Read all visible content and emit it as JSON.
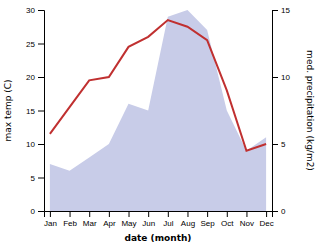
{
  "chart_data": {
    "type": "line",
    "xlabel": "date (month)",
    "ylabel": "max temp (C)",
    "y2label": "med. precipitation (kg/m2)",
    "categories": [
      "Jan",
      "Feb",
      "Mar",
      "Apr",
      "May",
      "Jun",
      "Jul",
      "Aug",
      "Sep",
      "Oct",
      "Nov",
      "Dec"
    ],
    "series": [
      {
        "type": "area",
        "axis": "y2",
        "color": "#c8cce8",
        "values": [
          3.5,
          3.0,
          4.0,
          5.0,
          8.0,
          7.5,
          14.5,
          15.0,
          13.5,
          7.5,
          4.5,
          5.5
        ]
      },
      {
        "type": "line",
        "color": "#c03030",
        "values": [
          11.5,
          15.5,
          19.5,
          20.0,
          24.5,
          26.0,
          28.5,
          27.5,
          25.5,
          18.0,
          9.0,
          10.0
        ]
      }
    ],
    "ylim": [
      0,
      30
    ],
    "yticks": [
      0,
      5,
      10,
      15,
      20,
      25,
      30
    ],
    "y2lim": [
      0,
      15
    ],
    "y2ticks": [
      0,
      5,
      10,
      15
    ]
  }
}
